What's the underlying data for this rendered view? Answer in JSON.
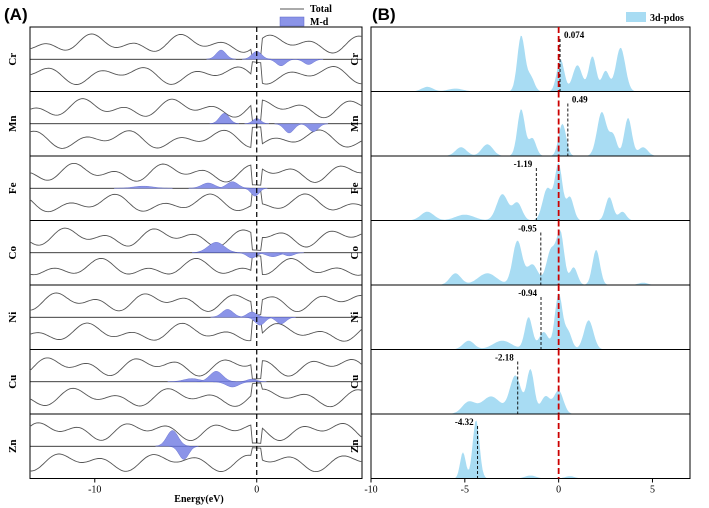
{
  "panel_a": {
    "tag": "(A)",
    "xlabel": "Energy(eV)",
    "legend": {
      "total": "Total",
      "metal_d": "M-d"
    },
    "rows": [
      "Cr",
      "Mn",
      "Fe",
      "Co",
      "Ni",
      "Cu",
      "Zn"
    ],
    "xticks": [
      "-10",
      "0"
    ]
  },
  "panel_b": {
    "tag": "(B)",
    "legend": "3d-pdos",
    "rows": [
      "Cr",
      "Mn",
      "Fe",
      "Co",
      "Ni",
      "Cu",
      "Zn"
    ],
    "xticks": [
      "-10",
      "-5",
      "0",
      "5"
    ]
  },
  "colors": {
    "total_line": "#555555",
    "metal_d_fill": "#8b94e8",
    "pdos_fill": "#a8dcf3",
    "fermi_line_b": "#cc0000",
    "frame": "#000000"
  },
  "chart_data": [
    {
      "type": "line",
      "title": "(A)",
      "xlabel": "Energy(eV)",
      "ylabel": "",
      "xlim": [
        -14,
        6.5
      ],
      "xticks": [
        -10,
        0
      ],
      "fermi_level": 0,
      "legend": [
        "Total",
        "M-d"
      ],
      "legend_position": "top-right",
      "panels": [
        {
          "metal": "Cr",
          "md_peaks": [
            {
              "x": -2.2,
              "w": 0.3,
              "h": 0.35
            },
            {
              "x": 0.0,
              "w": 0.3,
              "h": 0.3
            },
            {
              "x": 1.5,
              "w": 0.3,
              "h": -0.25
            },
            {
              "x": 3.2,
              "w": 0.3,
              "h": -0.2
            }
          ]
        },
        {
          "metal": "Mn",
          "md_peaks": [
            {
              "x": -2.0,
              "w": 0.3,
              "h": 0.4
            },
            {
              "x": 0.0,
              "w": 0.25,
              "h": 0.2
            },
            {
              "x": 2.0,
              "w": 0.3,
              "h": -0.35
            },
            {
              "x": 3.5,
              "w": 0.3,
              "h": -0.3
            }
          ]
        },
        {
          "metal": "Fe",
          "md_peaks": [
            {
              "x": -7.0,
              "w": 0.6,
              "h": 0.08
            },
            {
              "x": -3.0,
              "w": 0.4,
              "h": 0.2
            },
            {
              "x": -1.5,
              "w": 0.35,
              "h": 0.25
            },
            {
              "x": -0.1,
              "w": 0.25,
              "h": -0.3
            }
          ]
        },
        {
          "metal": "Co",
          "md_peaks": [
            {
              "x": -2.5,
              "w": 0.5,
              "h": 0.4
            },
            {
              "x": -0.3,
              "w": 0.3,
              "h": -0.2
            },
            {
              "x": 1.0,
              "w": 0.4,
              "h": -0.15
            },
            {
              "x": 2.0,
              "w": 0.3,
              "h": -0.12
            }
          ]
        },
        {
          "metal": "Ni",
          "md_peaks": [
            {
              "x": -1.8,
              "w": 0.35,
              "h": 0.3
            },
            {
              "x": -0.3,
              "w": 0.3,
              "h": 0.2
            },
            {
              "x": 0.2,
              "w": 0.3,
              "h": -0.3
            },
            {
              "x": 1.5,
              "w": 0.3,
              "h": -0.25
            }
          ]
        },
        {
          "metal": "Cu",
          "md_peaks": [
            {
              "x": -4.0,
              "w": 0.5,
              "h": 0.12
            },
            {
              "x": -2.5,
              "w": 0.4,
              "h": 0.4
            },
            {
              "x": -1.5,
              "w": 0.4,
              "h": -0.2
            },
            {
              "x": -0.3,
              "w": 0.3,
              "h": 0.1
            }
          ]
        },
        {
          "metal": "Zn",
          "md_peaks": [
            {
              "x": -5.2,
              "w": 0.35,
              "h": 0.6
            },
            {
              "x": -4.5,
              "w": 0.3,
              "h": -0.5
            }
          ]
        }
      ]
    },
    {
      "type": "area",
      "title": "(B)",
      "xlabel": "",
      "ylabel": "",
      "xlim": [
        -10,
        7
      ],
      "xticks": [
        -10,
        -5,
        0,
        5
      ],
      "fermi_level": 0,
      "legend": [
        "3d-pdos"
      ],
      "legend_position": "top-right",
      "panels": [
        {
          "metal": "Cr",
          "d_band_center": 0.074,
          "label": "0.074",
          "peaks": [
            {
              "x": -7.0,
              "w": 0.3,
              "h": 0.08
            },
            {
              "x": -5.5,
              "w": 0.4,
              "h": 0.05
            },
            {
              "x": -2.0,
              "w": 0.2,
              "h": 0.95
            },
            {
              "x": -1.5,
              "w": 0.2,
              "h": 0.25
            },
            {
              "x": 0.1,
              "w": 0.2,
              "h": 0.55
            },
            {
              "x": 1.0,
              "w": 0.25,
              "h": 0.45
            },
            {
              "x": 1.8,
              "w": 0.2,
              "h": 0.6
            },
            {
              "x": 2.5,
              "w": 0.2,
              "h": 0.35
            },
            {
              "x": 3.3,
              "w": 0.25,
              "h": 0.75
            }
          ]
        },
        {
          "metal": "Mn",
          "d_band_center": 0.49,
          "label": "0.49",
          "peaks": [
            {
              "x": -5.2,
              "w": 0.3,
              "h": 0.15
            },
            {
              "x": -3.8,
              "w": 0.3,
              "h": 0.2
            },
            {
              "x": -2.0,
              "w": 0.2,
              "h": 0.8
            },
            {
              "x": -1.4,
              "w": 0.2,
              "h": 0.3
            },
            {
              "x": 0.2,
              "w": 0.2,
              "h": 0.55
            },
            {
              "x": 2.3,
              "w": 0.25,
              "h": 0.75
            },
            {
              "x": 2.9,
              "w": 0.2,
              "h": 0.35
            },
            {
              "x": 3.7,
              "w": 0.2,
              "h": 0.65
            },
            {
              "x": 4.5,
              "w": 0.25,
              "h": 0.15
            }
          ]
        },
        {
          "metal": "Fe",
          "d_band_center": -1.19,
          "label": "-1.19",
          "peaks": [
            {
              "x": -7.0,
              "w": 0.35,
              "h": 0.15
            },
            {
              "x": -5.0,
              "w": 0.5,
              "h": 0.1
            },
            {
              "x": -3.0,
              "w": 0.3,
              "h": 0.45
            },
            {
              "x": -2.2,
              "w": 0.25,
              "h": 0.3
            },
            {
              "x": -0.6,
              "w": 0.25,
              "h": 0.55
            },
            {
              "x": 0.0,
              "w": 0.2,
              "h": 0.95
            },
            {
              "x": 0.6,
              "w": 0.2,
              "h": 0.4
            },
            {
              "x": 2.7,
              "w": 0.2,
              "h": 0.4
            },
            {
              "x": 3.4,
              "w": 0.2,
              "h": 0.15
            }
          ]
        },
        {
          "metal": "Co",
          "d_band_center": -0.95,
          "label": "-0.95",
          "peaks": [
            {
              "x": -5.5,
              "w": 0.3,
              "h": 0.2
            },
            {
              "x": -3.8,
              "w": 0.5,
              "h": 0.2
            },
            {
              "x": -2.2,
              "w": 0.25,
              "h": 0.75
            },
            {
              "x": -1.4,
              "w": 0.3,
              "h": 0.35
            },
            {
              "x": -0.4,
              "w": 0.25,
              "h": 0.6
            },
            {
              "x": 0.1,
              "w": 0.2,
              "h": 0.85
            },
            {
              "x": 0.8,
              "w": 0.2,
              "h": 0.3
            },
            {
              "x": 2.0,
              "w": 0.2,
              "h": 0.6
            },
            {
              "x": 4.5,
              "w": 0.25,
              "h": 0.04
            }
          ]
        },
        {
          "metal": "Ni",
          "d_band_center": -0.94,
          "label": "-0.94",
          "peaks": [
            {
              "x": -4.8,
              "w": 0.3,
              "h": 0.15
            },
            {
              "x": -3.0,
              "w": 0.5,
              "h": 0.15
            },
            {
              "x": -1.6,
              "w": 0.2,
              "h": 0.55
            },
            {
              "x": -0.8,
              "w": 0.25,
              "h": 0.3
            },
            {
              "x": 0.0,
              "w": 0.2,
              "h": 0.95
            },
            {
              "x": 0.5,
              "w": 0.2,
              "h": 0.3
            },
            {
              "x": 1.6,
              "w": 0.25,
              "h": 0.5
            }
          ]
        },
        {
          "metal": "Cu",
          "d_band_center": -2.18,
          "label": "-2.18",
          "peaks": [
            {
              "x": -4.8,
              "w": 0.35,
              "h": 0.2
            },
            {
              "x": -3.6,
              "w": 0.5,
              "h": 0.3
            },
            {
              "x": -2.3,
              "w": 0.3,
              "h": 0.65
            },
            {
              "x": -1.5,
              "w": 0.2,
              "h": 0.75
            },
            {
              "x": -0.7,
              "w": 0.25,
              "h": 0.3
            },
            {
              "x": 0.0,
              "w": 0.25,
              "h": 0.4
            }
          ]
        },
        {
          "metal": "Zn",
          "d_band_center": -4.32,
          "label": "-4.32",
          "peaks": [
            {
              "x": -5.1,
              "w": 0.15,
              "h": 0.45
            },
            {
              "x": -4.4,
              "w": 0.18,
              "h": 1.0
            },
            {
              "x": -1.5,
              "w": 0.3,
              "h": 0.05
            },
            {
              "x": 0.6,
              "w": 0.25,
              "h": 0.04
            }
          ]
        }
      ]
    }
  ]
}
